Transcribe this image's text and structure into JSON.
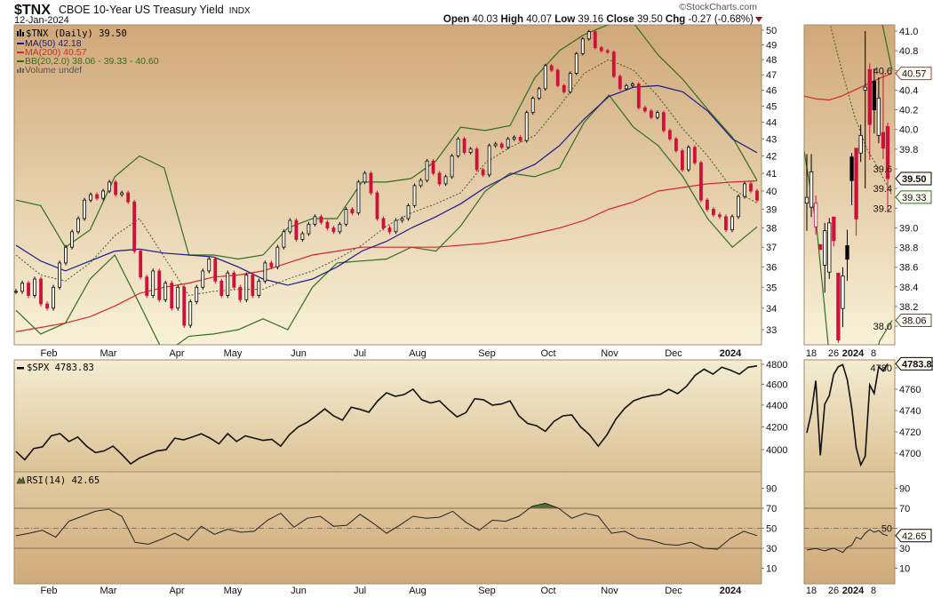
{
  "header": {
    "symbol": "$TNX",
    "name": "CBOE 10-Year US Treasury Yield",
    "exchange": "INDX",
    "date": "12-Jan-2024",
    "watermark": "©StockCharts.com",
    "ohlc": {
      "open_label": "Open",
      "open": "40.03",
      "high_label": "High",
      "high": "40.07",
      "low_label": "Low",
      "low": "39.16",
      "close_label": "Close",
      "close": "39.50",
      "chg_label": "Chg",
      "chg": "-0.27 (-0.68%)",
      "direction_icon": "down-triangle-icon"
    }
  },
  "legend": {
    "price": "$TNX (Daily) 39.50",
    "ma50": "MA(50) 42.18",
    "ma200": "MA(200) 40.57",
    "bb": "BB(20,2.0) 38.06 - 39.33 - 40.60",
    "volume": "Volume undef",
    "spx": "$SPX 4783.83",
    "rsi": "RSI(14) 42.65"
  },
  "x_axis_labels": [
    "Feb",
    "Mar",
    "Apr",
    "May",
    "Jun",
    "Jul",
    "Aug",
    "Sep",
    "Oct",
    "Nov",
    "Dec",
    "2024"
  ],
  "inset_x_axis_labels": [
    "18",
    "26",
    "2024",
    "8"
  ],
  "value_tags": {
    "ma200": "40.57",
    "close": "39.50",
    "bb_mid": "39.33",
    "bb_lower": "38.06",
    "spx": "4783.83",
    "rsi": "42.65"
  },
  "colors": {
    "up_candle": "#000000",
    "down_candle": "#d0103a",
    "ma50": "#1a1a8c",
    "ma200": "#d42a2a",
    "bb": "#2f6f1f",
    "panel_top": "#d1aa7c",
    "panel_bottom": "#f8f1d6"
  },
  "chart_data": [
    {
      "type": "candlestick",
      "title": "$TNX (Daily)",
      "y_scale": "log",
      "ylim": [
        32.4,
        50.4
      ],
      "y_ticks": [
        50,
        49,
        48,
        47,
        46,
        45,
        44,
        43,
        42,
        41,
        40,
        39,
        38,
        37,
        36,
        35,
        34,
        33
      ],
      "closes": [
        34.8,
        35.2,
        34.6,
        35.4,
        34.2,
        34.0,
        35.0,
        36.2,
        37.0,
        37.8,
        38.5,
        39.5,
        39.8,
        39.6,
        40.0,
        40.5,
        39.8,
        39.9,
        39.4,
        36.8,
        35.5,
        34.6,
        35.8,
        34.4,
        35.2,
        34.0,
        35.0,
        33.2,
        34.3,
        35.0,
        35.8,
        36.4,
        35.3,
        34.6,
        35.7,
        35.0,
        34.4,
        35.6,
        34.6,
        35.3,
        36.2,
        36.0,
        37.0,
        37.8,
        38.4,
        37.4,
        37.7,
        38.2,
        38.6,
        38.3,
        38.0,
        37.8,
        38.2,
        39.0,
        38.8,
        40.5,
        41.0,
        39.9,
        38.5,
        38.0,
        37.8,
        38.4,
        38.5,
        39.2,
        40.3,
        40.6,
        41.7,
        41.0,
        40.4,
        40.8,
        42.0,
        43.0,
        42.2,
        42.4,
        41.2,
        40.9,
        42.6,
        42.7,
        42.5,
        43.0,
        43.1,
        42.9,
        44.6,
        45.5,
        46.1,
        47.6,
        47.3,
        46.3,
        45.9,
        47.1,
        48.4,
        49.4,
        49.9,
        48.8,
        48.6,
        48.5,
        46.9,
        46.1,
        46.3,
        46.4,
        44.9,
        44.7,
        44.3,
        44.6,
        43.5,
        43.0,
        42.3,
        41.2,
        42.5,
        41.6,
        39.5,
        39.0,
        38.7,
        38.6,
        37.9,
        38.6,
        39.7,
        40.4,
        40.0,
        39.5
      ],
      "ma50": [
        37.1,
        36.3,
        35.8,
        36.3,
        36.8,
        36.9,
        36.7,
        36.6,
        36.5,
        36.0,
        35.4,
        35.1,
        35.4,
        36.0,
        36.8,
        37.3,
        38.0,
        38.6,
        39.3,
        40.2,
        40.9,
        41.5,
        42.6,
        44.2,
        45.6,
        46.2,
        46.3,
        45.9,
        44.7,
        43.0,
        42.18
      ],
      "ma200": [
        32.9,
        33.1,
        33.3,
        33.6,
        34.1,
        34.7,
        35.0,
        35.2,
        35.5,
        35.6,
        35.8,
        36.2,
        36.6,
        36.8,
        37.0,
        37.0,
        37.0,
        37.0,
        37.1,
        37.2,
        37.4,
        37.7,
        38.0,
        38.4,
        39.0,
        39.4,
        40.0,
        40.2,
        40.4,
        40.5,
        40.57
      ],
      "bb_upper": [
        39.5,
        39.2,
        37.0,
        37.9,
        40.8,
        42.0,
        41.3,
        36.6,
        36.6,
        36.4,
        36.6,
        38.0,
        38.5,
        38.5,
        40.5,
        40.5,
        40.7,
        41.7,
        43.7,
        43.5,
        43.8,
        46.8,
        48.6,
        49.7,
        50.4,
        50.5,
        48.3,
        46.7,
        44.8,
        43.1,
        40.6
      ],
      "bb_middle": [
        36.6,
        35.6,
        35.3,
        36.2,
        37.6,
        38.5,
        36.5,
        34.6,
        34.8,
        34.9,
        34.9,
        35.4,
        35.8,
        36.4,
        37.1,
        38.1,
        38.8,
        39.3,
        39.9,
        41.6,
        42.5,
        43.2,
        45.0,
        47.1,
        48.0,
        47.3,
        45.6,
        43.6,
        42.0,
        40.1,
        39.33
      ],
      "bb_lower": [
        33.9,
        32.8,
        33.3,
        35.4,
        36.6,
        34.2,
        31.9,
        32.7,
        32.8,
        33.0,
        33.5,
        33.0,
        35.0,
        36.2,
        36.3,
        36.4,
        37.0,
        36.8,
        38.1,
        40.0,
        41.0,
        40.8,
        41.3,
        44.0,
        45.7,
        43.7,
        42.6,
        40.8,
        38.5,
        37.0,
        38.06
      ],
      "inset": {
        "ylim": [
          37.81,
          41.06
        ],
        "y_ticks": [
          "41.0",
          "40.8",
          "40.6",
          "40.4",
          "40.2",
          "40.0",
          "39.8",
          "39.6",
          "39.4",
          "39.2",
          "39.0",
          "38.8",
          "38.6",
          "38.4",
          "38.2",
          "38.0"
        ],
        "ohlc": [
          [
            39.25,
            39.75,
            38.97,
            39.31
          ],
          [
            39.21,
            39.75,
            39.11,
            39.57
          ],
          [
            39.01,
            39.33,
            38.93,
            39.25
          ],
          [
            38.83,
            38.83,
            38.78,
            38.78
          ],
          [
            38.62,
            39.05,
            38.34,
            38.97
          ],
          [
            38.55,
            39.1,
            38.48,
            39.05
          ],
          [
            39.11,
            39.11,
            38.81,
            38.87
          ],
          [
            38.54,
            38.54,
            37.83,
            37.86
          ],
          [
            38.18,
            38.6,
            37.99,
            38.51
          ],
          [
            38.82,
            38.98,
            38.46,
            38.68
          ],
          [
            39.72,
            39.76,
            39.23,
            39.48
          ],
          [
            39.81,
            39.81,
            38.92,
            39.09
          ],
          [
            39.76,
            40.05,
            39.67,
            39.94
          ],
          [
            40.4,
            41.0,
            39.4,
            40.43
          ],
          [
            40.61,
            40.67,
            39.69,
            40.05
          ],
          [
            40.49,
            40.62,
            39.96,
            40.2
          ],
          [
            39.94,
            40.53,
            39.86,
            40.32
          ],
          [
            39.97,
            40.59,
            39.7,
            39.81
          ],
          [
            40.03,
            40.07,
            39.16,
            39.5
          ]
        ],
        "ma200": [
          40.34,
          40.31,
          40.3,
          40.34,
          40.4,
          40.46,
          40.52,
          40.57
        ],
        "bb_upper": [
          42.5,
          42.6,
          42.6,
          42.5,
          42.2,
          41.8,
          41.2,
          40.6
        ],
        "bb_middle": [
          41.6,
          41.4,
          41.1,
          40.6,
          40.14,
          39.8,
          39.58,
          39.33
        ],
        "bb_lower": [
          39.78,
          39.0,
          37.7,
          37.3,
          37.2,
          37.3,
          37.85,
          38.06
        ]
      }
    },
    {
      "type": "line",
      "title": "$SPX",
      "y_scale": "log",
      "y_ticks": [
        4800,
        4600,
        4400,
        4200,
        4000
      ],
      "values": [
        3985,
        3915,
        4010,
        4024,
        4120,
        4140,
        4070,
        4110,
        4030,
        3975,
        3990,
        4030,
        3960,
        3880,
        3930,
        3960,
        3990,
        4000,
        4100,
        4085,
        4110,
        4138,
        4100,
        4050,
        4140,
        4070,
        4120,
        4100,
        4080,
        4090,
        4030,
        4130,
        4200,
        4240,
        4300,
        4364,
        4300,
        4260,
        4380,
        4360,
        4333,
        4440,
        4517,
        4483,
        4500,
        4552,
        4450,
        4420,
        4440,
        4360,
        4290,
        4330,
        4460,
        4450,
        4400,
        4410,
        4440,
        4300,
        4230,
        4210,
        4160,
        4250,
        4300,
        4308,
        4200,
        4130,
        4030,
        4130,
        4270,
        4370,
        4440,
        4470,
        4490,
        4500,
        4550,
        4509,
        4580,
        4690,
        4750,
        4700,
        4770,
        4740,
        4700,
        4770,
        4783.83
      ],
      "inset": {
        "y_ticks": [
          4780,
          4760,
          4740,
          4720,
          4700
        ],
        "values": [
          4719,
          4738,
          4768,
          4698,
          4746,
          4754,
          4774,
          4781,
          4783,
          4769,
          4742,
          4705,
          4689,
          4697,
          4764,
          4756,
          4781,
          4777,
          4783.83
        ]
      }
    },
    {
      "type": "line",
      "title": "RSI(14)",
      "ylim": [
        0,
        100
      ],
      "y_ticks": [
        90,
        70,
        50,
        30,
        10
      ],
      "reference_lines": [
        70,
        50,
        30
      ],
      "values": [
        42.4,
        45,
        48,
        41,
        57,
        62,
        67,
        69,
        62,
        36,
        34,
        39,
        45,
        38,
        52,
        44,
        49,
        46,
        47,
        58,
        65,
        51,
        60,
        62,
        52,
        53,
        64,
        55,
        45,
        53,
        62,
        60,
        61,
        67,
        56,
        48,
        58,
        57,
        62,
        72,
        75,
        70,
        60,
        65,
        62,
        45,
        47,
        40,
        38,
        34,
        33,
        36,
        30,
        29,
        40,
        47,
        42.65
      ],
      "inset": {
        "values": [
          28.2,
          29,
          29.7,
          28.5,
          27.3,
          29,
          30,
          28,
          25.8,
          31,
          33,
          41,
          39,
          45,
          48.7,
          46,
          47.7,
          44,
          42.65
        ]
      }
    }
  ]
}
